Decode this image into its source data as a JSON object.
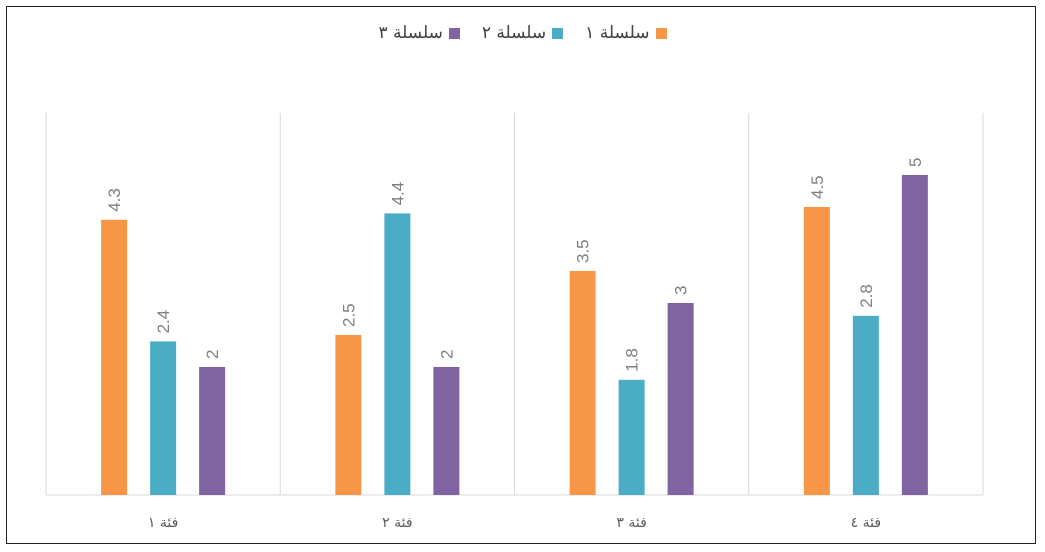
{
  "chart_data": {
    "type": "bar",
    "categories": [
      "فئة ١",
      "فئة ٢",
      "فئة ٣",
      "فئة ٤"
    ],
    "series": [
      {
        "name": "سلسلة ١",
        "color": "#F79646",
        "values": [
          4.3,
          2.5,
          3.5,
          4.5
        ],
        "labels": [
          "4.3",
          "2.5",
          "3.5",
          "4.5"
        ]
      },
      {
        "name": "سلسلة ٢",
        "color": "#4BACC6",
        "values": [
          2.4,
          4.4,
          1.8,
          2.8
        ],
        "labels": [
          "2.4",
          "4.4",
          "1.8",
          "2.8"
        ]
      },
      {
        "name": "سلسلة ٣",
        "color": "#8064A2",
        "values": [
          2,
          2,
          3,
          5
        ],
        "labels": [
          "2",
          "2",
          "3",
          "5"
        ]
      }
    ],
    "title": "",
    "xlabel": "",
    "ylabel": "",
    "ylim": [
      0,
      6
    ],
    "grid": "vertical-category-separators",
    "legend_position": "top",
    "data_labels": "rotated-above-bars"
  }
}
